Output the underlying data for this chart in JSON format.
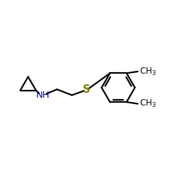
{
  "background_color": "#ffffff",
  "bond_color": "#000000",
  "N_color": "#0000cc",
  "S_color": "#808000",
  "fig_width": 2.5,
  "fig_height": 2.5,
  "dpi": 100
}
